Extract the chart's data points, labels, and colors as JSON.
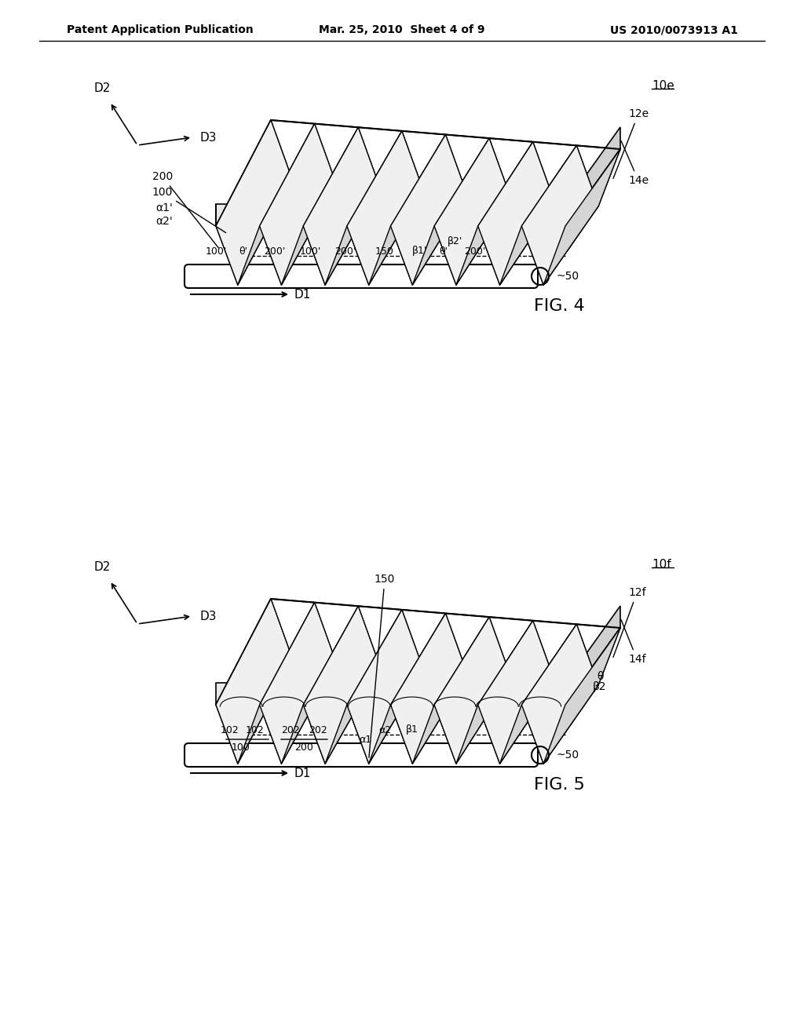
{
  "bg_color": "#ffffff",
  "text_color": "#000000",
  "line_color": "#000000",
  "header_left": "Patent Application Publication",
  "header_center": "Mar. 25, 2010  Sheet 4 of 9",
  "header_right": "US 2010/0073913 A1",
  "fig4_label": "FIG. 4",
  "fig5_label": "FIG. 5",
  "fig4_ref": "10e",
  "fig5_ref": "10f"
}
